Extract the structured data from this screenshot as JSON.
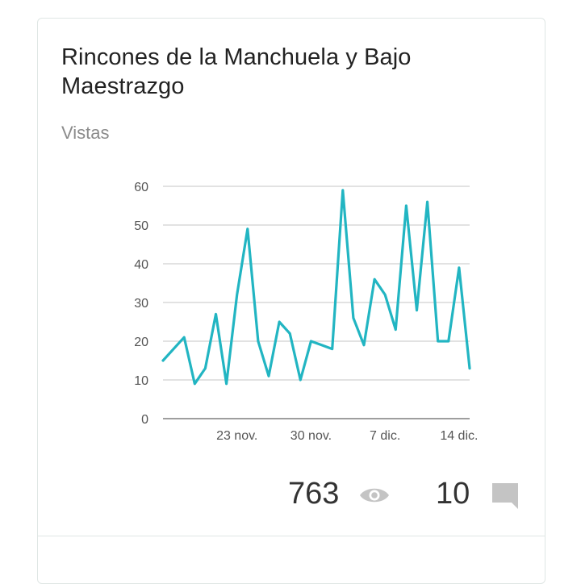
{
  "card": {
    "title": "Rincones de la Manchuela y Bajo Maestrazgo",
    "subtitle": "Vistas",
    "views": "763",
    "comments": "10",
    "views_icon": "eye-icon",
    "comments_icon": "comment-icon"
  },
  "colors": {
    "line": "#22b5c2",
    "grid": "#d9d9d9",
    "axis": "#9e9e9e",
    "icon": "#c4c4c4"
  },
  "chart_data": {
    "type": "line",
    "title": "",
    "xlabel": "",
    "ylabel": "",
    "ylim": [
      0,
      60
    ],
    "yticks": [
      0,
      10,
      20,
      30,
      40,
      50,
      60
    ],
    "xtick_labels": [
      {
        "label": "23 nov.",
        "index": 7
      },
      {
        "label": "30 nov.",
        "index": 14
      },
      {
        "label": "7 dic.",
        "index": 21
      },
      {
        "label": "14 dic.",
        "index": 28
      }
    ],
    "grid": true,
    "series": [
      {
        "values": [
          15,
          18,
          21,
          9,
          13,
          27,
          9,
          32,
          49,
          20,
          11,
          25,
          22,
          10,
          20,
          19,
          18,
          59,
          26,
          19,
          36,
          32,
          23,
          55,
          28,
          56,
          20,
          20,
          39,
          13
        ]
      }
    ]
  }
}
